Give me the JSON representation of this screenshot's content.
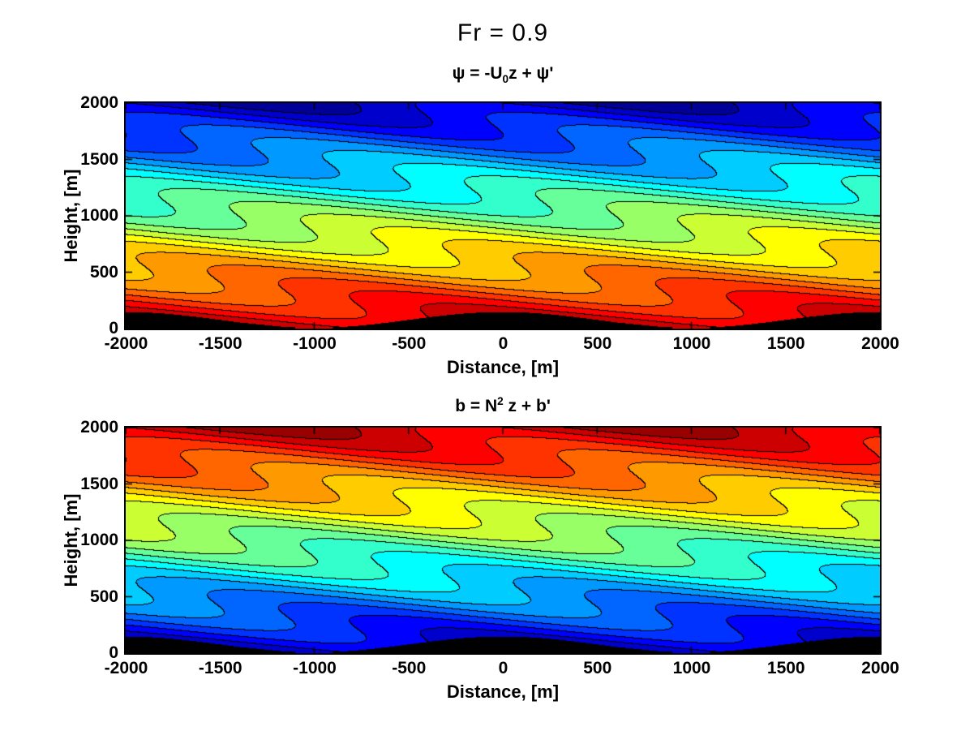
{
  "figure": {
    "title": "Fr = 0.9",
    "background": "#ffffff",
    "axis_color": "#000000",
    "terrain_color": "#000000"
  },
  "chart_data": [
    {
      "type": "contour",
      "title_parts": {
        "pre": "ψ = -U",
        "sub": "0",
        "post": "z + ψ'"
      },
      "xlabel": "Distance, [m]",
      "ylabel": "Height, [m]",
      "xlim": [
        -2000,
        2000
      ],
      "ylim": [
        0,
        2000
      ],
      "x_ticks": [
        -2000,
        -1500,
        -1000,
        -500,
        0,
        500,
        1000,
        1500,
        2000
      ],
      "y_ticks": [
        0,
        500,
        1000,
        1500,
        2000
      ],
      "colormap": "jet",
      "n_levels": 20,
      "color_orientation": "high-at-bottom",
      "legend": "none",
      "grid": false,
      "field_model": {
        "kind": "periodic-mountain-wave-streamlines",
        "displacement_amplitude_m": 125,
        "horizontal_wavelength_m": 2000,
        "vertical_wavelength_m": 600,
        "phase_rad": -1.35,
        "terrain_peak_height_m": 140,
        "level_min": -130,
        "level_max": 2130
      }
    },
    {
      "type": "contour",
      "title_parts": {
        "pre": "b = N",
        "sup": "2",
        "post": " z + b'"
      },
      "xlabel": "Distance, [m]",
      "ylabel": "Height, [m]",
      "xlim": [
        -2000,
        2000
      ],
      "ylim": [
        0,
        2000
      ],
      "x_ticks": [
        -2000,
        -1500,
        -1000,
        -500,
        0,
        500,
        1000,
        1500,
        2000
      ],
      "y_ticks": [
        0,
        500,
        1000,
        1500,
        2000
      ],
      "colormap": "jet",
      "n_levels": 20,
      "color_orientation": "high-at-top",
      "legend": "none",
      "grid": false,
      "field_model": {
        "kind": "periodic-mountain-wave-streamlines",
        "displacement_amplitude_m": 125,
        "horizontal_wavelength_m": 2000,
        "vertical_wavelength_m": 600,
        "phase_rad": -1.35,
        "terrain_peak_height_m": 140,
        "level_min": -130,
        "level_max": 2130
      }
    }
  ]
}
